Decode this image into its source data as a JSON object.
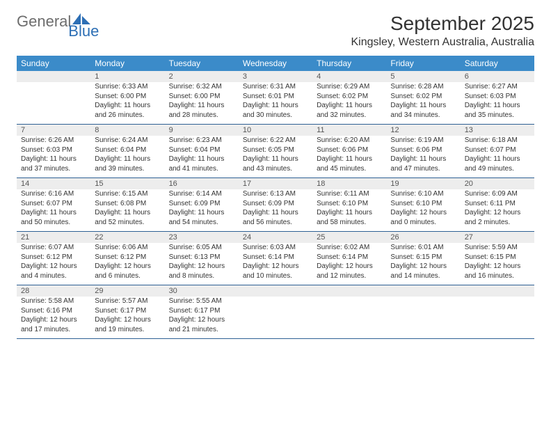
{
  "logo": {
    "general": "General",
    "blue": "Blue"
  },
  "title": "September 2025",
  "location": "Kingsley, Western Australia, Australia",
  "colors": {
    "header_bg": "#3b8bc9",
    "row_border": "#2e6094",
    "daynum_band": "#ededed",
    "text": "#333333",
    "logo_gray": "#6d6d6d",
    "logo_blue": "#2d6fb5",
    "page_bg": "#ffffff"
  },
  "typography": {
    "title_fontsize_pt": 21,
    "location_fontsize_pt": 12,
    "dayhead_fontsize_pt": 9,
    "cell_fontsize_pt": 7.5
  },
  "day_headers": [
    "Sunday",
    "Monday",
    "Tuesday",
    "Wednesday",
    "Thursday",
    "Friday",
    "Saturday"
  ],
  "weeks": [
    [
      {
        "n": "",
        "sunrise": "",
        "sunset": "",
        "daylight": ""
      },
      {
        "n": "1",
        "sunrise": "Sunrise: 6:33 AM",
        "sunset": "Sunset: 6:00 PM",
        "daylight": "Daylight: 11 hours and 26 minutes."
      },
      {
        "n": "2",
        "sunrise": "Sunrise: 6:32 AM",
        "sunset": "Sunset: 6:00 PM",
        "daylight": "Daylight: 11 hours and 28 minutes."
      },
      {
        "n": "3",
        "sunrise": "Sunrise: 6:31 AM",
        "sunset": "Sunset: 6:01 PM",
        "daylight": "Daylight: 11 hours and 30 minutes."
      },
      {
        "n": "4",
        "sunrise": "Sunrise: 6:29 AM",
        "sunset": "Sunset: 6:02 PM",
        "daylight": "Daylight: 11 hours and 32 minutes."
      },
      {
        "n": "5",
        "sunrise": "Sunrise: 6:28 AM",
        "sunset": "Sunset: 6:02 PM",
        "daylight": "Daylight: 11 hours and 34 minutes."
      },
      {
        "n": "6",
        "sunrise": "Sunrise: 6:27 AM",
        "sunset": "Sunset: 6:03 PM",
        "daylight": "Daylight: 11 hours and 35 minutes."
      }
    ],
    [
      {
        "n": "7",
        "sunrise": "Sunrise: 6:26 AM",
        "sunset": "Sunset: 6:03 PM",
        "daylight": "Daylight: 11 hours and 37 minutes."
      },
      {
        "n": "8",
        "sunrise": "Sunrise: 6:24 AM",
        "sunset": "Sunset: 6:04 PM",
        "daylight": "Daylight: 11 hours and 39 minutes."
      },
      {
        "n": "9",
        "sunrise": "Sunrise: 6:23 AM",
        "sunset": "Sunset: 6:04 PM",
        "daylight": "Daylight: 11 hours and 41 minutes."
      },
      {
        "n": "10",
        "sunrise": "Sunrise: 6:22 AM",
        "sunset": "Sunset: 6:05 PM",
        "daylight": "Daylight: 11 hours and 43 minutes."
      },
      {
        "n": "11",
        "sunrise": "Sunrise: 6:20 AM",
        "sunset": "Sunset: 6:06 PM",
        "daylight": "Daylight: 11 hours and 45 minutes."
      },
      {
        "n": "12",
        "sunrise": "Sunrise: 6:19 AM",
        "sunset": "Sunset: 6:06 PM",
        "daylight": "Daylight: 11 hours and 47 minutes."
      },
      {
        "n": "13",
        "sunrise": "Sunrise: 6:18 AM",
        "sunset": "Sunset: 6:07 PM",
        "daylight": "Daylight: 11 hours and 49 minutes."
      }
    ],
    [
      {
        "n": "14",
        "sunrise": "Sunrise: 6:16 AM",
        "sunset": "Sunset: 6:07 PM",
        "daylight": "Daylight: 11 hours and 50 minutes."
      },
      {
        "n": "15",
        "sunrise": "Sunrise: 6:15 AM",
        "sunset": "Sunset: 6:08 PM",
        "daylight": "Daylight: 11 hours and 52 minutes."
      },
      {
        "n": "16",
        "sunrise": "Sunrise: 6:14 AM",
        "sunset": "Sunset: 6:09 PM",
        "daylight": "Daylight: 11 hours and 54 minutes."
      },
      {
        "n": "17",
        "sunrise": "Sunrise: 6:13 AM",
        "sunset": "Sunset: 6:09 PM",
        "daylight": "Daylight: 11 hours and 56 minutes."
      },
      {
        "n": "18",
        "sunrise": "Sunrise: 6:11 AM",
        "sunset": "Sunset: 6:10 PM",
        "daylight": "Daylight: 11 hours and 58 minutes."
      },
      {
        "n": "19",
        "sunrise": "Sunrise: 6:10 AM",
        "sunset": "Sunset: 6:10 PM",
        "daylight": "Daylight: 12 hours and 0 minutes."
      },
      {
        "n": "20",
        "sunrise": "Sunrise: 6:09 AM",
        "sunset": "Sunset: 6:11 PM",
        "daylight": "Daylight: 12 hours and 2 minutes."
      }
    ],
    [
      {
        "n": "21",
        "sunrise": "Sunrise: 6:07 AM",
        "sunset": "Sunset: 6:12 PM",
        "daylight": "Daylight: 12 hours and 4 minutes."
      },
      {
        "n": "22",
        "sunrise": "Sunrise: 6:06 AM",
        "sunset": "Sunset: 6:12 PM",
        "daylight": "Daylight: 12 hours and 6 minutes."
      },
      {
        "n": "23",
        "sunrise": "Sunrise: 6:05 AM",
        "sunset": "Sunset: 6:13 PM",
        "daylight": "Daylight: 12 hours and 8 minutes."
      },
      {
        "n": "24",
        "sunrise": "Sunrise: 6:03 AM",
        "sunset": "Sunset: 6:14 PM",
        "daylight": "Daylight: 12 hours and 10 minutes."
      },
      {
        "n": "25",
        "sunrise": "Sunrise: 6:02 AM",
        "sunset": "Sunset: 6:14 PM",
        "daylight": "Daylight: 12 hours and 12 minutes."
      },
      {
        "n": "26",
        "sunrise": "Sunrise: 6:01 AM",
        "sunset": "Sunset: 6:15 PM",
        "daylight": "Daylight: 12 hours and 14 minutes."
      },
      {
        "n": "27",
        "sunrise": "Sunrise: 5:59 AM",
        "sunset": "Sunset: 6:15 PM",
        "daylight": "Daylight: 12 hours and 16 minutes."
      }
    ],
    [
      {
        "n": "28",
        "sunrise": "Sunrise: 5:58 AM",
        "sunset": "Sunset: 6:16 PM",
        "daylight": "Daylight: 12 hours and 17 minutes."
      },
      {
        "n": "29",
        "sunrise": "Sunrise: 5:57 AM",
        "sunset": "Sunset: 6:17 PM",
        "daylight": "Daylight: 12 hours and 19 minutes."
      },
      {
        "n": "30",
        "sunrise": "Sunrise: 5:55 AM",
        "sunset": "Sunset: 6:17 PM",
        "daylight": "Daylight: 12 hours and 21 minutes."
      },
      {
        "n": "",
        "sunrise": "",
        "sunset": "",
        "daylight": ""
      },
      {
        "n": "",
        "sunrise": "",
        "sunset": "",
        "daylight": ""
      },
      {
        "n": "",
        "sunrise": "",
        "sunset": "",
        "daylight": ""
      },
      {
        "n": "",
        "sunrise": "",
        "sunset": "",
        "daylight": ""
      }
    ]
  ]
}
